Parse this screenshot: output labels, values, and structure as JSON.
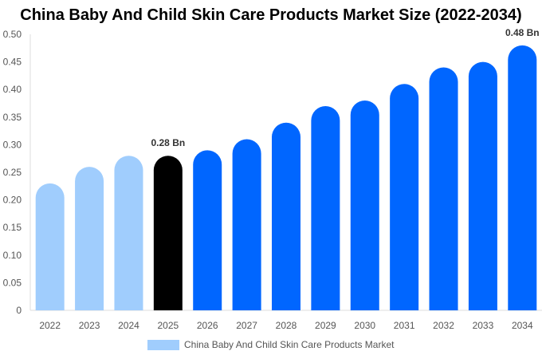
{
  "chart_data": {
    "type": "bar",
    "title": "China Baby And Child Skin Care Products Market Size (2022-2034)",
    "categories": [
      "2022",
      "2023",
      "2024",
      "2025",
      "2026",
      "2027",
      "2028",
      "2029",
      "2030",
      "2031",
      "2032",
      "2033",
      "2034"
    ],
    "series": [
      {
        "name": "China Baby And Child Skin Care Products Market",
        "values": [
          0.23,
          0.26,
          0.28,
          0.28,
          0.29,
          0.31,
          0.34,
          0.37,
          0.38,
          0.41,
          0.44,
          0.45,
          0.48
        ]
      }
    ],
    "ylim": [
      0,
      0.5
    ],
    "yticks": [
      "0",
      "0.05",
      "0.10",
      "0.15",
      "0.20",
      "0.25",
      "0.30",
      "0.35",
      "0.40",
      "0.45",
      "0.50"
    ],
    "data_labels": {
      "2025": "0.28 Bn",
      "2034": "0.48 Bn"
    },
    "colors": {
      "historical": "#a0cdfd",
      "current": "#000000",
      "forecast": "#0066ff"
    },
    "grid": false,
    "legend_position": "bottom"
  }
}
